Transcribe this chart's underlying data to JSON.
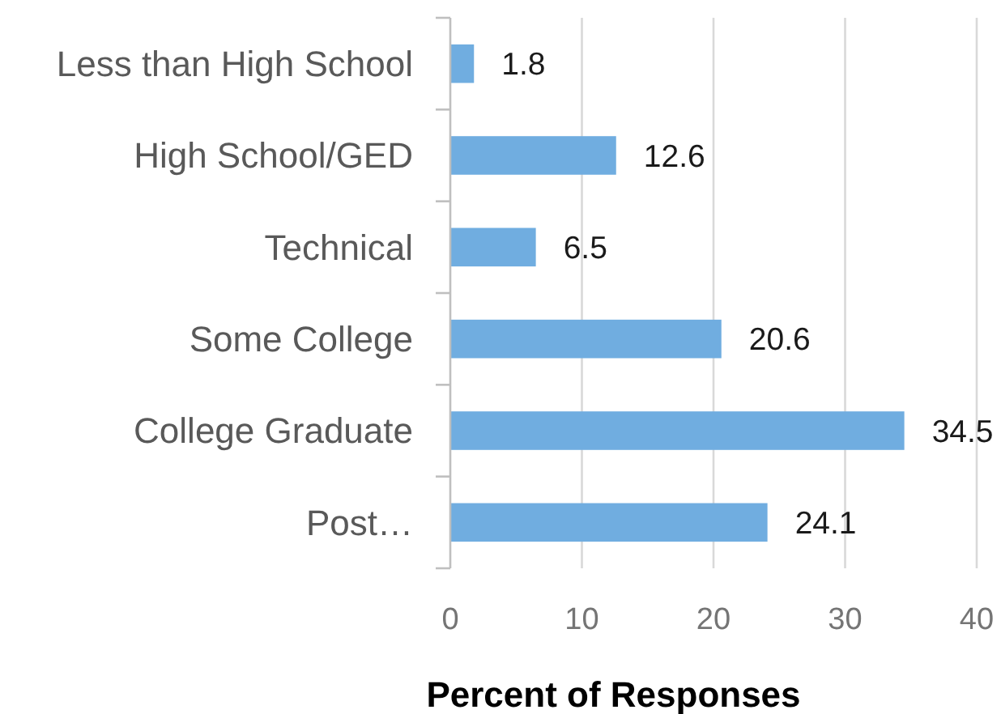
{
  "chart_data": {
    "type": "bar",
    "orientation": "horizontal",
    "xlabel": "Percent of Responses",
    "categories": [
      "Less than High School",
      "High School/GED",
      "Technical",
      "Some College",
      "College Graduate",
      "Post…"
    ],
    "values": [
      1.8,
      12.6,
      6.5,
      20.6,
      34.5,
      24.1
    ],
    "color": "#70ade0",
    "xlim": [
      0,
      40
    ],
    "xticks": [
      0,
      10,
      20,
      30,
      40
    ],
    "grid": "x",
    "data_labels": true
  }
}
